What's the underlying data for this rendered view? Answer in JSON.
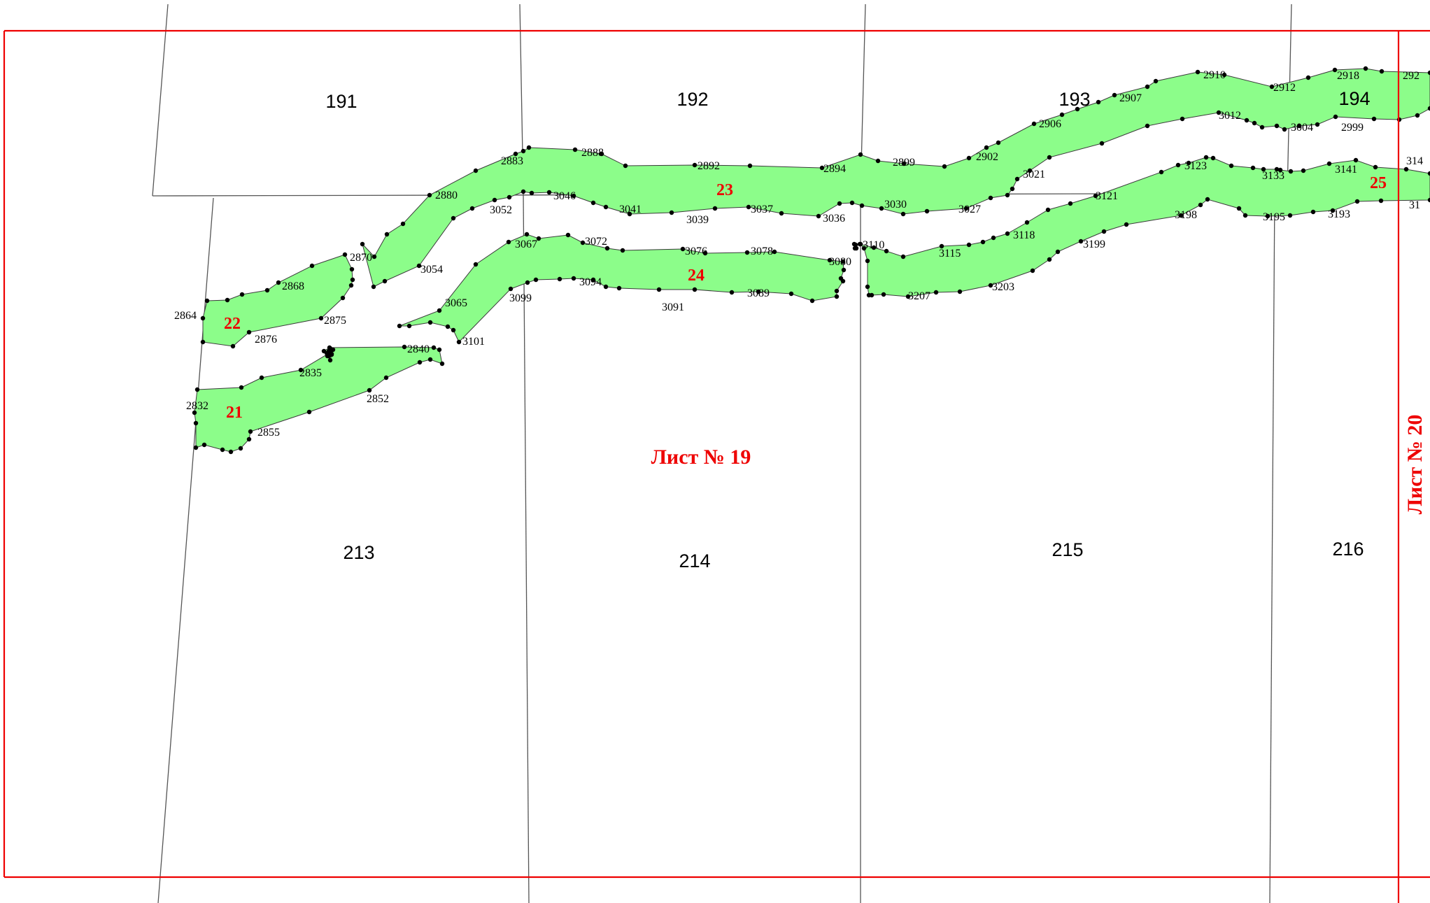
{
  "sheet": {
    "title": "Лист № 19",
    "next_sheet": "Лист № 20"
  },
  "quarters": [
    {
      "id": "q191",
      "label": "191"
    },
    {
      "id": "q192",
      "label": "192"
    },
    {
      "id": "q193",
      "label": "193"
    },
    {
      "id": "q194",
      "label": "194"
    },
    {
      "id": "q213",
      "label": "213"
    },
    {
      "id": "q214",
      "label": "214"
    },
    {
      "id": "q215",
      "label": "215"
    },
    {
      "id": "q216",
      "label": "216"
    }
  ],
  "plots": [
    {
      "id": "p21",
      "label": "21"
    },
    {
      "id": "p22",
      "label": "22"
    },
    {
      "id": "p23",
      "label": "23"
    },
    {
      "id": "p24",
      "label": "24"
    },
    {
      "id": "p25",
      "label": "25"
    }
  ],
  "points": [
    "2832",
    "2835",
    "2840",
    "2852",
    "2855",
    "2864",
    "2868",
    "2870",
    "2875",
    "2876",
    "2880",
    "2883",
    "2888",
    "2892",
    "2894",
    "2899",
    "2902",
    "2906",
    "2907",
    "2910",
    "2912",
    "2918",
    "292",
    "3004",
    "2999",
    "3012",
    "3021",
    "3052",
    "3046",
    "3041",
    "3039",
    "3037",
    "3036",
    "3030",
    "3027",
    "3054",
    "3067",
    "3072",
    "3076",
    "3078",
    "3080",
    "3065",
    "3099",
    "3094",
    "3091",
    "3089",
    "3101",
    "3110",
    "3115",
    "3118",
    "3199",
    "3207",
    "3203",
    "3121",
    "3123",
    "3133",
    "3141",
    "314",
    "3198",
    "3195",
    "3193",
    "31"
  ],
  "colors": {
    "plot_fill": "#8cfd8a",
    "frame": "#ee0000",
    "grid": "#555555",
    "labels_red": "#ee0000"
  }
}
